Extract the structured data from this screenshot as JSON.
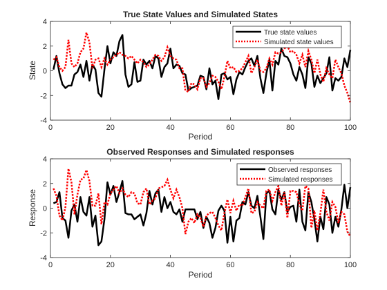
{
  "chart_data": [
    {
      "type": "line",
      "title": "True State Values and Simulated States",
      "xlabel": "Period",
      "ylabel": "State",
      "xlim": [
        0,
        100
      ],
      "ylim": [
        -4,
        4
      ],
      "xticks": [
        0,
        20,
        40,
        60,
        80,
        100
      ],
      "yticks": [
        -4,
        -2,
        0,
        2,
        4
      ],
      "xtick_labels": [
        "0",
        "20",
        "40",
        "60",
        "80",
        "100"
      ],
      "ytick_labels": [
        "-4",
        "-2",
        "0",
        "2",
        "4"
      ],
      "grid": false,
      "legend": "top-right",
      "series": [
        {
          "name": "True state values",
          "color": "#000000",
          "style": "solid",
          "x": [
            1,
            2,
            3,
            4,
            5,
            6,
            7,
            8,
            9,
            10,
            11,
            12,
            13,
            14,
            15,
            16,
            17,
            18,
            19,
            20,
            21,
            22,
            23,
            24,
            25,
            26,
            27,
            28,
            29,
            30,
            31,
            32,
            33,
            34,
            35,
            36,
            37,
            38,
            39,
            40,
            41,
            42,
            43,
            44,
            45,
            46,
            47,
            48,
            49,
            50,
            51,
            52,
            53,
            54,
            55,
            56,
            57,
            58,
            59,
            60,
            61,
            62,
            63,
            64,
            65,
            66,
            67,
            68,
            69,
            70,
            71,
            72,
            73,
            74,
            75,
            76,
            77,
            78,
            79,
            80,
            81,
            82,
            83,
            84,
            85,
            86,
            87,
            88,
            89,
            90,
            91,
            92,
            93,
            94,
            95,
            96,
            97,
            98,
            99,
            100
          ],
          "y": [
            0.1,
            1.2,
            -0.2,
            -1.1,
            -1.4,
            -1.2,
            -1.2,
            -0.3,
            -0.1,
            0.5,
            -0.5,
            0.8,
            -0.8,
            0.5,
            0.1,
            -1.8,
            -2.1,
            0.1,
            2.0,
            0.6,
            1.5,
            1.2,
            2.4,
            2.9,
            -0.3,
            -1.3,
            -1.1,
            0.7,
            -0.9,
            -0.8,
            0.9,
            0.5,
            0.8,
            0.2,
            1.2,
            1.0,
            -0.5,
            0.3,
            0.6,
            1.8,
            0.2,
            0.5,
            0.4,
            -0.2,
            -0.3,
            -1.6,
            -1.4,
            -1.3,
            -1.2,
            -0.4,
            -0.5,
            -1.5,
            0.2,
            -1.1,
            -0.8,
            -2.3,
            -0.3,
            -0.2,
            -0.7,
            -0.5,
            -1.9,
            -0.7,
            -0.1,
            -0.3,
            0.3,
            0.8,
            1.0,
            0.4,
            1.2,
            -0.6,
            -1.8,
            -0.2,
            0.9,
            -1.6,
            0.8,
            0.5,
            1.8,
            1.2,
            1.1,
            0.6,
            -0.3,
            -0.8,
            0.3,
            -0.3,
            -1.4,
            1.1,
            0.6,
            -1.3,
            -0.4,
            -1.0,
            -0.6,
            -0.2,
            1.1,
            -1.6,
            -0.6,
            -0.8,
            -0.5,
            1.0,
            0.3,
            1.7
          ]
        },
        {
          "name": "Simulated state values",
          "color": "#ff0000",
          "style": "dotted",
          "x": [
            1,
            2,
            3,
            4,
            5,
            6,
            7,
            8,
            9,
            10,
            11,
            12,
            13,
            14,
            15,
            16,
            17,
            18,
            19,
            20,
            21,
            22,
            23,
            24,
            25,
            26,
            27,
            28,
            29,
            30,
            31,
            32,
            33,
            34,
            35,
            36,
            37,
            38,
            39,
            40,
            41,
            42,
            43,
            44,
            45,
            46,
            47,
            48,
            49,
            50,
            51,
            52,
            53,
            54,
            55,
            56,
            57,
            58,
            59,
            60,
            61,
            62,
            63,
            64,
            65,
            66,
            67,
            68,
            69,
            70,
            71,
            72,
            73,
            74,
            75,
            76,
            77,
            78,
            79,
            80,
            81,
            82,
            83,
            84,
            85,
            86,
            87,
            88,
            89,
            90,
            91,
            92,
            93,
            94,
            95,
            96,
            97,
            98,
            99,
            100
          ],
          "y": [
            0.9,
            1.1,
            0.3,
            0.0,
            0.3,
            2.5,
            0.6,
            0.3,
            0.6,
            1.5,
            1.8,
            3.1,
            2.3,
            0.2,
            0.9,
            1.0,
            0.3,
            1.0,
            0.5,
            0.9,
            1.1,
            1.3,
            1.5,
            1.3,
            1.2,
            1.0,
            1.2,
            0.9,
            0.6,
            0.9,
            0.7,
            0.3,
            0.5,
            0.9,
            1.3,
            1.2,
            0.8,
            1.1,
            1.9,
            1.2,
            1.0,
            0.9,
            0.2,
            0.2,
            -1.6,
            -1.7,
            -1.0,
            -1.1,
            -1.5,
            -0.6,
            -0.6,
            -1.3,
            -1.0,
            -0.4,
            -0.5,
            -0.9,
            -1.5,
            -0.5,
            0.8,
            0.2,
            0.3,
            -0.1,
            0.0,
            0.2,
            0.7,
            1.2,
            -0.2,
            0.3,
            0.9,
            0.0,
            -0.1,
            0.2,
            1.0,
            0.5,
            1.5,
            1.4,
            1.5,
            1.8,
            2.0,
            1.5,
            1.6,
            1.3,
            0.6,
            1.3,
            0.3,
            1.6,
            0.9,
            -0.2,
            0.9,
            -0.3,
            -0.9,
            0.2,
            -0.3,
            -0.6,
            0.9,
            0.3,
            -0.2,
            -1.2,
            -1.8,
            -2.6
          ]
        }
      ]
    },
    {
      "type": "line",
      "title": "Observed Responses and Simulated responses",
      "xlabel": "Period",
      "ylabel": "Response",
      "xlim": [
        0,
        100
      ],
      "ylim": [
        -4,
        4
      ],
      "xticks": [
        0,
        20,
        40,
        60,
        80,
        100
      ],
      "yticks": [
        -4,
        -2,
        0,
        2,
        4
      ],
      "xtick_labels": [
        "0",
        "20",
        "40",
        "60",
        "80",
        "100"
      ],
      "ytick_labels": [
        "-4",
        "-2",
        "0",
        "2",
        "4"
      ],
      "grid": false,
      "legend": "top-right",
      "series": [
        {
          "name": "Observed responses",
          "color": "#000000",
          "style": "solid",
          "x": [
            1,
            2,
            3,
            4,
            5,
            6,
            7,
            8,
            9,
            10,
            11,
            12,
            13,
            14,
            15,
            16,
            17,
            18,
            19,
            20,
            21,
            22,
            23,
            24,
            25,
            26,
            27,
            28,
            29,
            30,
            31,
            32,
            33,
            34,
            35,
            36,
            37,
            38,
            39,
            40,
            41,
            42,
            43,
            44,
            45,
            46,
            47,
            48,
            49,
            50,
            51,
            52,
            53,
            54,
            55,
            56,
            57,
            58,
            59,
            60,
            61,
            62,
            63,
            64,
            65,
            66,
            67,
            68,
            69,
            70,
            71,
            72,
            73,
            74,
            75,
            76,
            77,
            78,
            79,
            80,
            81,
            82,
            83,
            84,
            85,
            86,
            87,
            88,
            89,
            90,
            91,
            92,
            93,
            94,
            95,
            96,
            97,
            98,
            99,
            100
          ],
          "y": [
            0.4,
            0.5,
            1.3,
            -0.8,
            -1.0,
            -2.4,
            -0.2,
            0.3,
            -1.1,
            0.9,
            -0.3,
            -0.6,
            0.9,
            -1.5,
            -0.6,
            -3.0,
            -2.7,
            -0.9,
            2.1,
            1.1,
            1.8,
            0.5,
            1.3,
            2.2,
            -0.4,
            -0.5,
            -0.5,
            -0.9,
            -0.7,
            -0.5,
            -1.4,
            -0.4,
            1.4,
            0.3,
            1.2,
            1.5,
            -0.3,
            0.9,
            0.0,
            0.5,
            -0.3,
            -0.5,
            -0.1,
            -1.1,
            -0.1,
            -0.1,
            -0.1,
            -0.1,
            -0.9,
            -0.3,
            -1.6,
            -0.7,
            -1.2,
            -2.4,
            -1.6,
            -0.2,
            0.2,
            -0.2,
            -2.8,
            -0.7,
            -2.7,
            -1.0,
            -0.8,
            0.5,
            0.3,
            1.3,
            0.2,
            0.0,
            1.0,
            -0.7,
            -2.5,
            1.2,
            1.4,
            -0.1,
            -0.5,
            1.5,
            0.7,
            1.3,
            -0.3,
            0.1,
            0.2,
            -1.1,
            1.5,
            -1.1,
            -1.8,
            1.3,
            0.5,
            -0.9,
            -2.7,
            -0.7,
            -1.7,
            0.9,
            0.3,
            -2.0,
            -0.7,
            -1.5,
            -0.1,
            1.9,
            0.0,
            1.7
          ]
        },
        {
          "name": "Simulated responses",
          "color": "#ff0000",
          "style": "dotted",
          "x": [
            1,
            2,
            3,
            4,
            5,
            6,
            7,
            8,
            9,
            10,
            11,
            12,
            13,
            14,
            15,
            16,
            17,
            18,
            19,
            20,
            21,
            22,
            23,
            24,
            25,
            26,
            27,
            28,
            29,
            30,
            31,
            32,
            33,
            34,
            35,
            36,
            37,
            38,
            39,
            40,
            41,
            42,
            43,
            44,
            45,
            46,
            47,
            48,
            49,
            50,
            51,
            52,
            53,
            54,
            55,
            56,
            57,
            58,
            59,
            60,
            61,
            62,
            63,
            64,
            65,
            66,
            67,
            68,
            69,
            70,
            71,
            72,
            73,
            74,
            75,
            76,
            77,
            78,
            79,
            80,
            81,
            82,
            83,
            84,
            85,
            86,
            87,
            88,
            89,
            90,
            91,
            92,
            93,
            94,
            95,
            96,
            97,
            98,
            99,
            100
          ],
          "y": [
            1.6,
            1.0,
            -0.6,
            -1.0,
            0.1,
            3.2,
            2.1,
            -0.5,
            1.1,
            2.3,
            2.4,
            3.1,
            2.2,
            0.2,
            0.2,
            1.2,
            -1.3,
            0.5,
            0.3,
            1.2,
            1.5,
            1.8,
            1.2,
            1.6,
            1.1,
            0.9,
            1.3,
            1.2,
            0.4,
            0.3,
            1.3,
            1.6,
            0.3,
            0.6,
            0.8,
            1.6,
            1.7,
            1.8,
            2.3,
            1.5,
            0.8,
            1.5,
            0.9,
            0.0,
            -2.1,
            -1.1,
            -0.8,
            -1.2,
            -0.5,
            -0.8,
            -1.5,
            -0.6,
            -0.4,
            -0.3,
            -0.8,
            -1.4,
            -1.8,
            -0.4,
            0.7,
            -0.4,
            0.6,
            -0.2,
            0.3,
            0.2,
            0.9,
            1.6,
            -0.4,
            -0.3,
            0.5,
            0.2,
            0.0,
            1.4,
            1.5,
            0.6,
            1.3,
            1.8,
            0.2,
            1.3,
            -0.8,
            1.4,
            1.4,
            1.3,
            0.3,
            -0.2,
            1.8,
            1.6,
            -1.6,
            -0.2,
            -1.8,
            -0.4,
            1.5,
            -0.3,
            -1.0,
            0.5,
            0.1,
            -1.2,
            -0.3,
            -0.5,
            -1.9,
            -2.3
          ]
        }
      ]
    }
  ]
}
